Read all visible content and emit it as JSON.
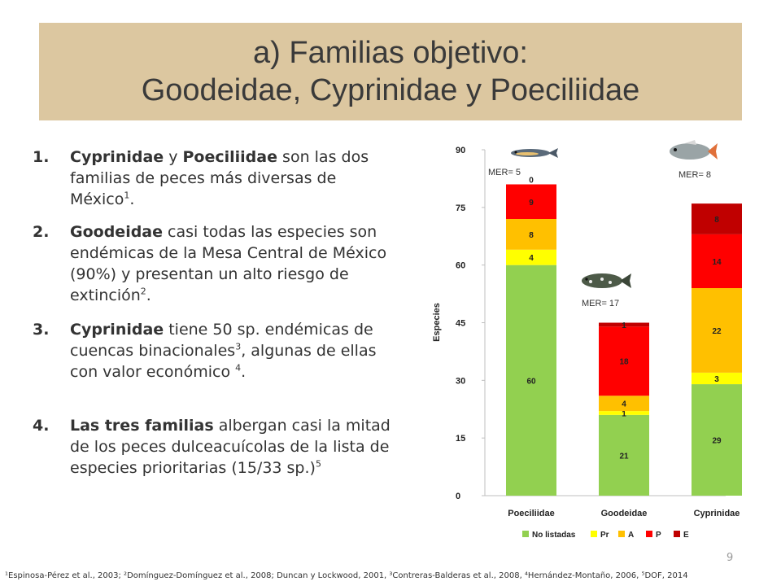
{
  "title": {
    "line1": "a) Familias objetivo:",
    "line2": "Goodeidae, Cyprinidae y Poeciliidae"
  },
  "list": [
    {
      "num": "1.",
      "b1": "Cyprinidae",
      "t1": " y ",
      "b2": "Poeciliidae",
      "t2": "  son las dos familias de peces más diversas de México",
      "sup": "1",
      "t3": "."
    },
    {
      "num": "2.",
      "b1": "Goodeidae",
      "t1": " casi todas las especies son endémicas de la Mesa Central de México (90%) y presentan un alto riesgo de extinción",
      "sup": "2",
      "t2": "."
    },
    {
      "num": "3.",
      "b1": "Cyprinidae",
      "t1": " tiene 50 sp. endémicas de cuencas binacionales",
      "sup1": "3",
      "t2": ", algunas de ellas con valor económico ",
      "sup2": "4",
      "t3": "."
    },
    {
      "num": "4.",
      "b1": "Las tres familias",
      "t1": " albergan casi la mitad de los peces dulceacuícolas de la lista de especies prioritarias (15/33 sp.)",
      "sup": "5"
    }
  ],
  "chart_data": {
    "type": "bar",
    "stacked": true,
    "categories": [
      "Poeciliidae",
      "Goodeidae",
      "Cyprinidae"
    ],
    "series": [
      {
        "name": "No listadas",
        "color": "#92d050",
        "values": [
          60,
          21,
          29
        ]
      },
      {
        "name": "Pr",
        "color": "#ffff00",
        "values": [
          4,
          1,
          3
        ]
      },
      {
        "name": "A",
        "color": "#ffc000",
        "values": [
          8,
          4,
          22
        ]
      },
      {
        "name": "P",
        "color": "#ff0000",
        "values": [
          9,
          18,
          14
        ]
      },
      {
        "name": "E",
        "color": "#c00000",
        "values": [
          0,
          1,
          8
        ]
      }
    ],
    "ylabel": "Especies",
    "ylim": [
      0,
      90
    ],
    "yticks": [
      0,
      15,
      30,
      45,
      60,
      75,
      90
    ],
    "legend_position": "bottom",
    "annotations": [
      "MER=  5",
      "MER=  17",
      "MER=  8"
    ]
  },
  "page_number": "9",
  "references": "¹Espinosa-Pérez et al., 2003; ²Domínguez-Domínguez et al., 2008; Duncan y Lockwood, 2001, ³Contreras-Balderas et al., 2008, ⁴Hernández-Montaño, 2006, ⁵DOF, 2014"
}
